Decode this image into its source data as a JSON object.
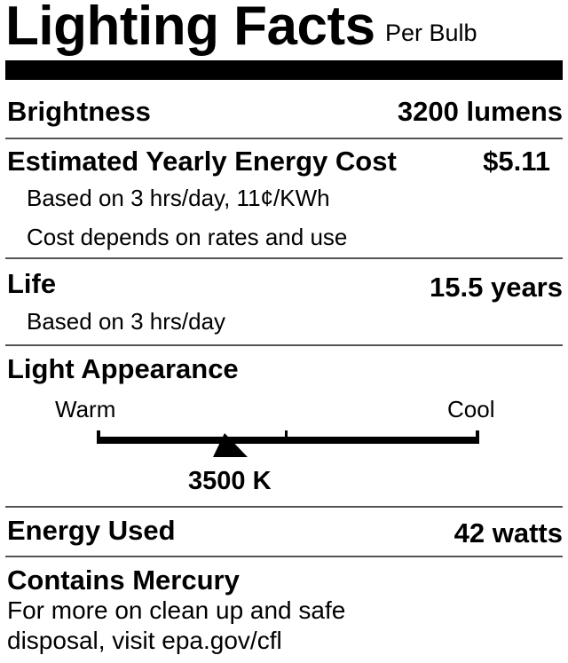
{
  "header": {
    "title": "Lighting Facts",
    "subtitle": "Per Bulb"
  },
  "brightness": {
    "label": "Brightness",
    "value": "3200 lumens"
  },
  "cost": {
    "label": "Estimated Yearly Energy Cost",
    "value": "$5.11",
    "note1": "Based on 3 hrs/day, 11¢/KWh",
    "note2": "Cost depends on rates and use"
  },
  "life": {
    "label": "Life",
    "value": "15.5 years",
    "note": "Based on 3 hrs/day"
  },
  "appearance": {
    "label": "Light Appearance",
    "warm_label": "Warm",
    "cool_label": "Cool",
    "value": "3500 K"
  },
  "energy": {
    "label": "Energy Used",
    "value": "42 watts"
  },
  "mercury": {
    "label": "Contains Mercury",
    "line1": "For more on clean up and safe",
    "line2": "disposal, visit epa.gov/cfl"
  }
}
